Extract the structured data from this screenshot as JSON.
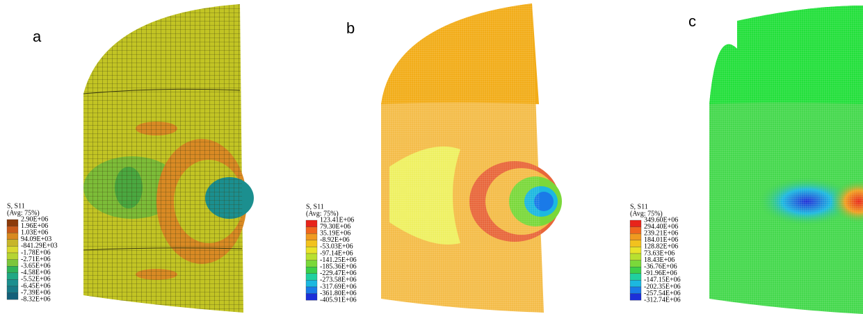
{
  "panels": [
    {
      "label": "a",
      "legend": {
        "title": [
          "S, S11",
          "(Avg: 75%)"
        ],
        "values": [
          "2.90E+06",
          "1.96E+06",
          "1.03E+06",
          "94.09E+03",
          "-841.29E+03",
          "-1.78E+06",
          "-2.71E+06",
          "-3.65E+06",
          "-4.58E+06",
          "-5.52E+06",
          "-6.45E+06",
          "-7.39E+06",
          "-8.32E+06"
        ],
        "colors": [
          "#8b3a0a",
          "#c85a1a",
          "#d8891f",
          "#c7b52a",
          "#d8d830",
          "#b5d432",
          "#7cc63c",
          "#2fb35a",
          "#20a884",
          "#1b8f8f",
          "#187a88",
          "#14607a"
        ]
      }
    },
    {
      "label": "b",
      "legend": {
        "title": [
          "S, S11",
          "(Avg: 75%)"
        ],
        "values": [
          "123.41E+06",
          "79.30E+06",
          "35.19E+06",
          "-8.92E+06",
          "-53.03E+06",
          "-97.14E+06",
          "-141.25E+06",
          "-185.36E+06",
          "-229.47E+06",
          "-273.58E+06",
          "-317.69E+06",
          "-361.80E+06",
          "-405.91E+06"
        ],
        "colors": [
          "#e8241b",
          "#f0661e",
          "#f09a20",
          "#f2c21e",
          "#e8e32a",
          "#b8e030",
          "#7ad83a",
          "#3ccf4a",
          "#20d0a0",
          "#1cb8e0",
          "#1a7ae8",
          "#1c2fd8"
        ]
      }
    },
    {
      "label": "c",
      "legend": {
        "title": [
          "S, S11",
          "(Avg: 75%)"
        ],
        "values": [
          "349.60E+06",
          "294.40E+06",
          "239.21E+06",
          "184.01E+06",
          "128.82E+06",
          "73.63E+06",
          "18.43E+06",
          "-36.76E+06",
          "-91.96E+06",
          "-147.15E+06",
          "-202.35E+06",
          "-257.54E+06",
          "-312.74E+06"
        ],
        "colors": [
          "#e8241b",
          "#f0661e",
          "#f09a20",
          "#f2c21e",
          "#e8e32a",
          "#b8e030",
          "#7ad83a",
          "#3ccf4a",
          "#20d0a0",
          "#1cb8e0",
          "#1a7ae8",
          "#1c2fd8"
        ]
      }
    }
  ]
}
